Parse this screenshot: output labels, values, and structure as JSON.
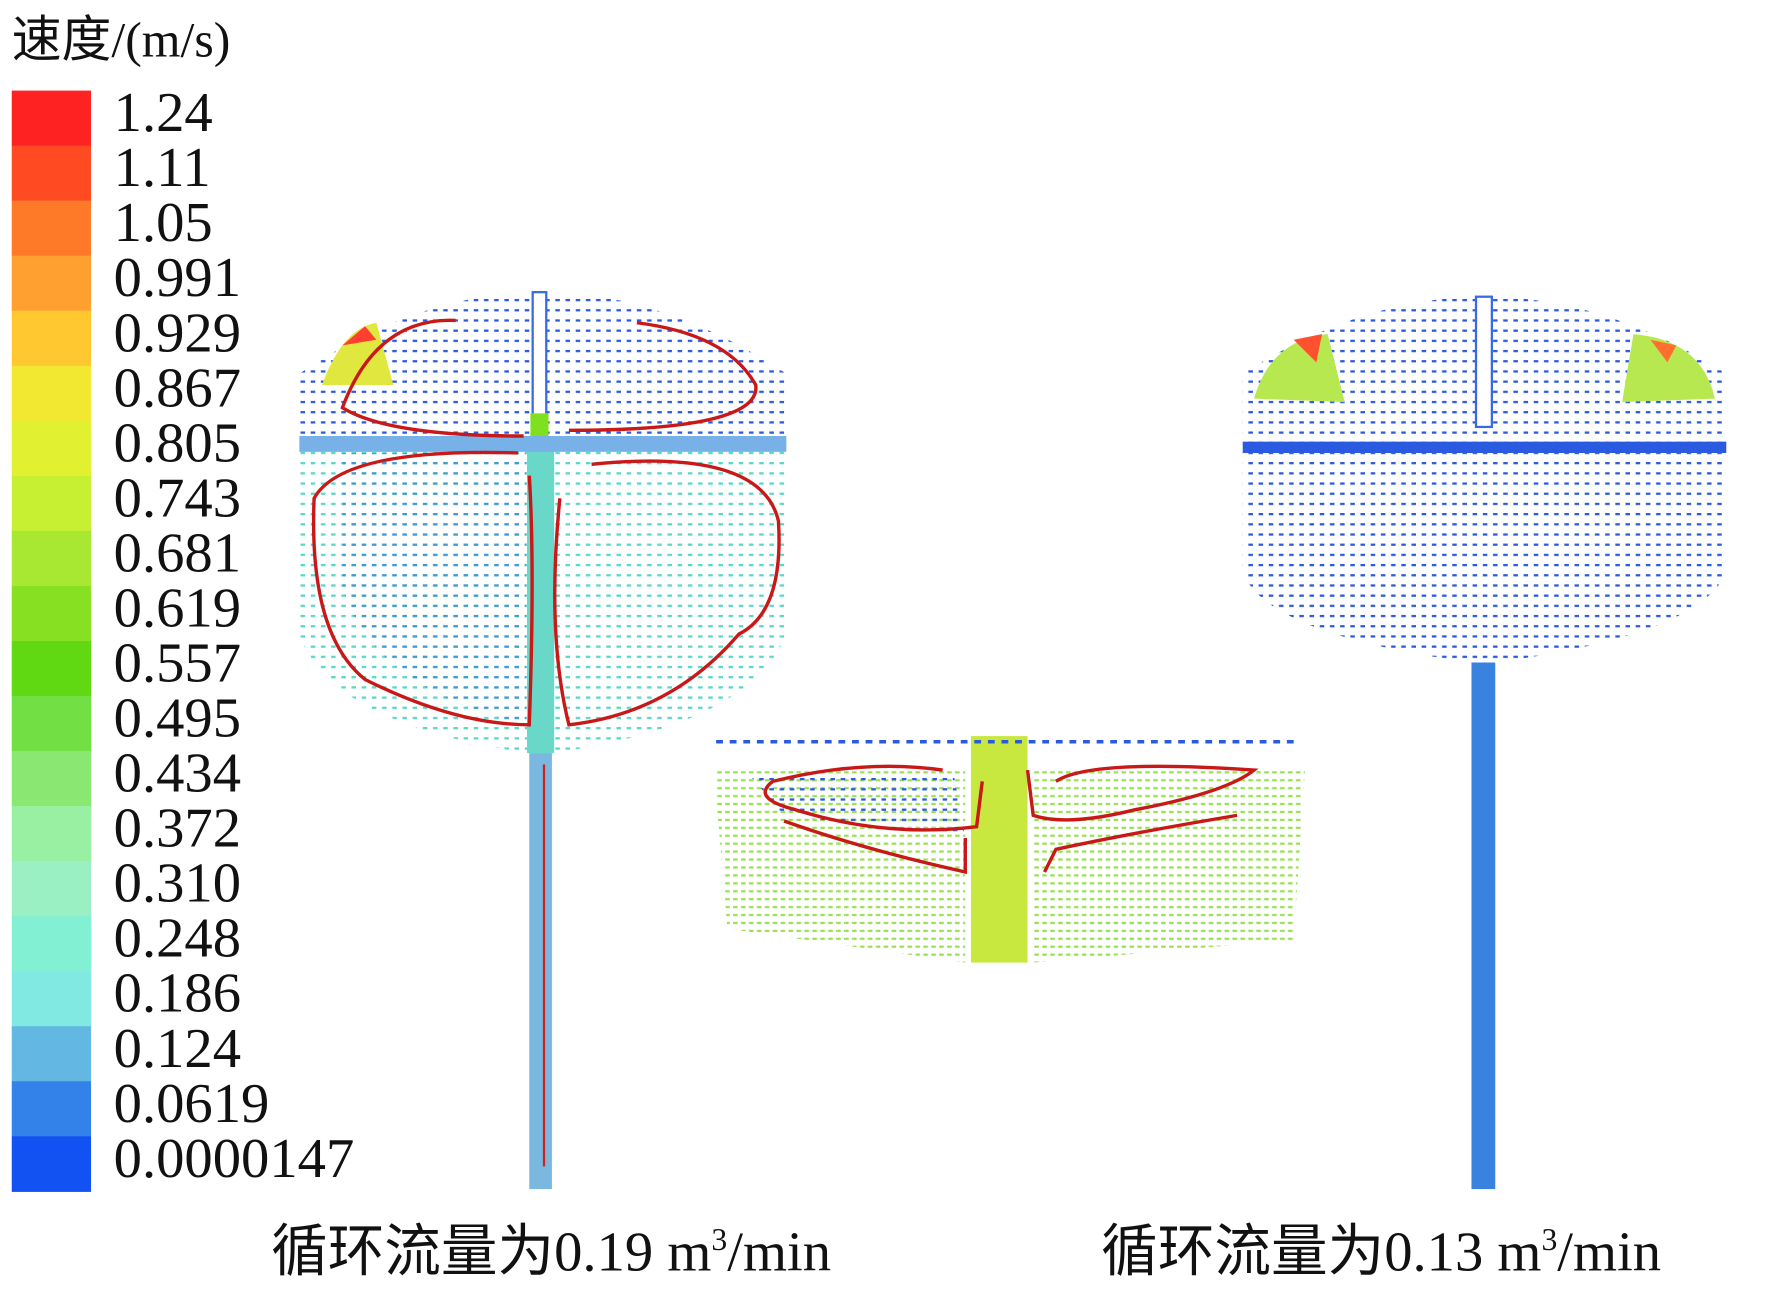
{
  "legend": {
    "title": "速度/(m/s)",
    "labels": [
      "1.24",
      "1.11",
      "1.05",
      "0.991",
      "0.929",
      "0.867",
      "0.805",
      "0.743",
      "0.681",
      "0.619",
      "0.557",
      "0.495",
      "0.434",
      "0.372",
      "0.310",
      "0.248",
      "0.186",
      "0.124",
      "0.0619",
      "0.0000147"
    ],
    "colors": [
      "#ff2222",
      "#ff4a22",
      "#ff7a28",
      "#ffa030",
      "#ffc830",
      "#f2e832",
      "#e2f032",
      "#c8f032",
      "#a8e832",
      "#88e022",
      "#60d812",
      "#72e044",
      "#8ae872",
      "#9af0a2",
      "#9af0c2",
      "#82f0d2",
      "#82e8e2",
      "#62b8e2",
      "#3282ea",
      "#1252f2"
    ]
  },
  "captions": [
    {
      "main": "循环流量为0.19 m",
      "sup": "3",
      "tail": "/min"
    },
    {
      "main": "循环流量为0.13 m",
      "sup": "3",
      "tail": "/min"
    }
  ]
}
